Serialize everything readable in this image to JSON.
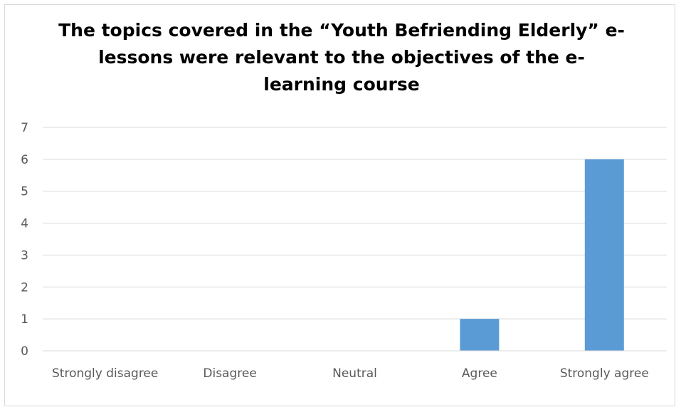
{
  "chart_data": {
    "type": "bar",
    "title": "The topics covered in the “Youth Befriending Elderly” e-lessons were relevant to the objectives of the e-learning course",
    "categories": [
      "Strongly disagree",
      "Disagree",
      "Neutral",
      "Agree",
      "Strongly agree"
    ],
    "values": [
      0,
      0,
      0,
      1,
      6
    ],
    "xlabel": "",
    "ylabel": "",
    "ylim": [
      0,
      7
    ],
    "yticks": [
      0,
      1,
      2,
      3,
      4,
      5,
      6,
      7
    ],
    "grid": true,
    "legend": "none",
    "bar_color": "#5b9bd5"
  }
}
